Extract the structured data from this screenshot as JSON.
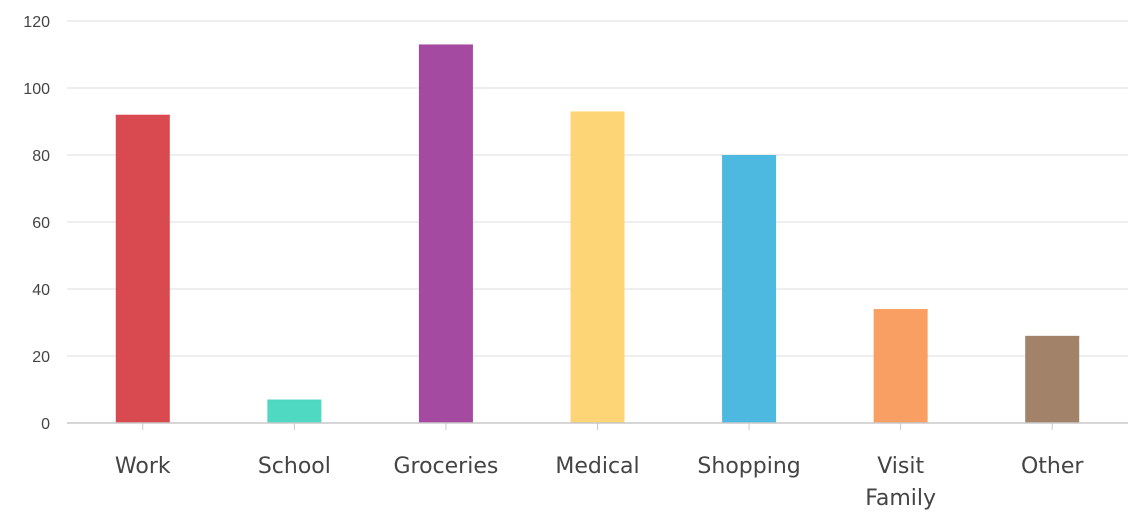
{
  "chart_data": {
    "type": "bar",
    "categories": [
      [
        "Work"
      ],
      [
        "School"
      ],
      [
        "Groceries"
      ],
      [
        "Medical"
      ],
      [
        "Shopping"
      ],
      [
        "Visit",
        "Family"
      ],
      [
        "Other"
      ]
    ],
    "values": [
      92,
      7,
      113,
      93,
      80,
      34,
      26
    ],
    "colors": [
      "#d94a50",
      "#4fd8c2",
      "#a54aa1",
      "#fdd576",
      "#4db9e0",
      "#f99f63",
      "#a3826a"
    ],
    "ylim": [
      0,
      120
    ],
    "yticks": [
      0,
      20,
      40,
      60,
      80,
      100,
      120
    ],
    "grid": true,
    "legend": "none"
  }
}
